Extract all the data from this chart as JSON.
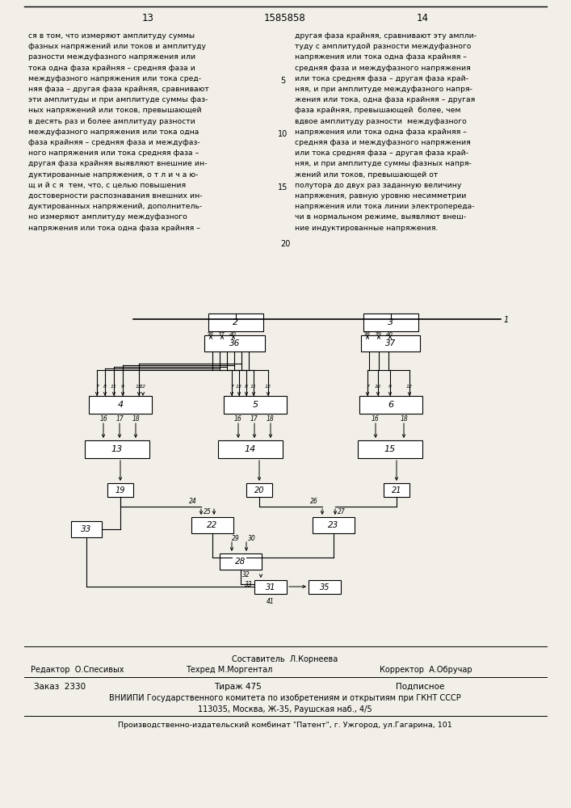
{
  "page_numbers": [
    "13",
    "1585858",
    "14"
  ],
  "text_left": "ся в том, что измеряют амплитуду суммы\nфазных напряжений или токов и амплитуду\nразности междуфазного напряжения или\nтока одна фаза крайняя – средняя фаза и\nмеждуфазного напряжения или тока сред-\nняя фаза – другая фаза крайняя, сравнивают\nэти амплитуды и при амплитуде суммы фаз-\nных напряжений или токов, превышающей\nв десять раз и более амплитуду разности\nмеждуфазного напряжения или тока одна\nфаза крайняя – средняя фаза и междуфаз-\nного напряжения или тока средняя фаза –\nдругая фаза крайняя выявляют внешние ин-\nдуктированные напряжения, о т л и ч а ю-\nщ и й с я  тем, что, с целью повышения\nдостоверности распознавания внешних ин-\nдуктированных напряжений, дополнитель-\nно измеряют амплитуду междуфазного\nнапряжения или тока одна фаза крайняя –",
  "text_right": "другая фаза крайняя, сравнивают эту ампли-\nтуду с амплитудой разности междуфазного\nнапряжения или тока одна фаза крайняя –\nсредняя фаза и междуфазного напряжения\nили тока средняя фаза – другая фаза край-\nняя, и при амплитуде междуфазного напря-\nжения или тока, одна фаза крайняя – другая\nфаза крайняя, превышающей  более, чем\nвдвое амплитуду разности  междуфазного\nнапряжения или тока одна фаза крайняя –\nсредняя фаза и междуфазного напряжения\nили тока средняя фаза – другая фаза край-\nняя, и при амплитуде суммы фазных напря-\nжений или токов, превышающей от\nполутора до двух раз заданную величину\nнапряжения, равную уровню несимметрии\nнапряжения или тока линии электропереда-\nчи в нормальном режиме, выявляют внеш-\nние индуктированные напряжения.",
  "footer_composer": "Составитель  Л.Корнеева",
  "footer_editor": "Редактор  О.Спесивых",
  "footer_techred": "Техред М.Моргентал",
  "footer_corrector": "Корректор  А.Обручар",
  "footer_order": "Заказ  2330",
  "footer_tirazh": "Тираж 475",
  "footer_podp": "Подписное",
  "footer_vniip": "ВНИИПИ Государственного комитета по изобретениям и открытиям при ГКНТ СССР",
  "footer_addr": "113035, Москва, Ж-35, Раушская наб., 4/5",
  "footer_factory": "Производственно-издательский комбинат \"Патент\", г. Ужгород, ул.Гагарина, 101",
  "bg_color": "#f2efe9"
}
